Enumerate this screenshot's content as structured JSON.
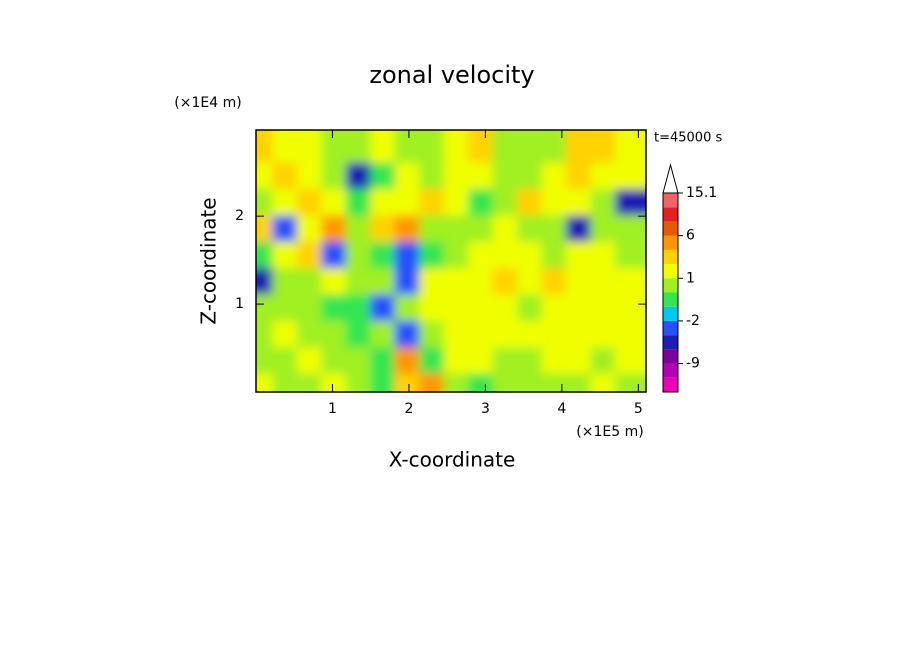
{
  "chart_data": {
    "type": "contour",
    "title": "zonal velocity",
    "x_unit": "(×1E5 m)",
    "y_unit": "(×1E4 m)",
    "time_label": "t=45000 s",
    "xlabel": "X-coordinate",
    "ylabel": "Z-coordinate",
    "xlim": [
      0,
      5.1
    ],
    "ylim": [
      0,
      2.98
    ],
    "xticks": [
      1,
      2,
      3,
      4,
      5
    ],
    "yticks": [
      1,
      2
    ],
    "x": [
      0.16,
      0.48,
      0.8,
      1.12,
      1.44,
      1.76,
      2.08,
      2.4,
      2.72,
      3.04,
      3.36,
      3.68,
      4.0,
      4.32,
      4.64,
      4.96
    ],
    "y": [
      0.15,
      0.45,
      0.75,
      1.05,
      1.35,
      1.65,
      1.95,
      2.25,
      2.55,
      2.85
    ],
    "z": [
      [
        1.5,
        0.5,
        0.5,
        1.5,
        0.5,
        -1,
        2,
        4,
        0.5,
        -1,
        0.5,
        0.5,
        0.5,
        0.5,
        1.5,
        0.5
      ],
      [
        0.5,
        0.5,
        1.5,
        0.5,
        0.5,
        -1,
        3,
        -1,
        1.5,
        1.5,
        0.5,
        0.5,
        1.5,
        1.5,
        0.5,
        1.5
      ],
      [
        0.5,
        1.5,
        0.5,
        0.5,
        -1,
        0.5,
        -3,
        0.5,
        1.5,
        1.5,
        1.5,
        1.5,
        1.5,
        1.5,
        1.5,
        1.5
      ],
      [
        0.5,
        0.5,
        0.5,
        -1,
        -1,
        -3,
        0.5,
        1.5,
        1.5,
        1.5,
        1.5,
        0.5,
        1.5,
        1.5,
        1.5,
        1.5
      ],
      [
        -5,
        0.5,
        0.5,
        1.5,
        0.5,
        0.5,
        -3,
        1.5,
        1.5,
        1.5,
        2.5,
        1.5,
        2.5,
        1.5,
        1.5,
        1.5
      ],
      [
        -1,
        1.5,
        2.5,
        -3,
        0.5,
        -1,
        -3,
        -1,
        0.5,
        1.5,
        1.5,
        1.5,
        0.5,
        1.5,
        1.5,
        0.5
      ],
      [
        2.5,
        -3,
        1.5,
        4,
        0.5,
        2.5,
        4,
        0.5,
        0.5,
        0.5,
        1.5,
        0.5,
        0.5,
        -5,
        0.5,
        0.5
      ],
      [
        0.5,
        1.5,
        2.5,
        1.5,
        -1,
        1.5,
        1.5,
        2.5,
        1.5,
        -1,
        0.5,
        2.5,
        1.5,
        1.5,
        0.5,
        -5
      ],
      [
        1.5,
        2.5,
        1.5,
        0.5,
        -5,
        -1,
        1.5,
        0.5,
        1.5,
        1.5,
        0.5,
        0.5,
        1.5,
        2.5,
        1.5,
        1.5
      ],
      [
        2.5,
        1.5,
        1.5,
        0.5,
        0.5,
        1.5,
        0.5,
        0.5,
        1.5,
        2.5,
        0.5,
        0.5,
        0.5,
        2.5,
        2.5,
        1.5
      ]
    ],
    "colorbar": {
      "levels": [
        -15,
        -12,
        -9,
        -6,
        -4,
        -2,
        -1,
        0,
        1,
        2,
        3,
        6,
        9,
        12,
        15.1
      ],
      "colors": [
        "#f000b4",
        "#b400b4",
        "#7d00a0",
        "#1e1eb4",
        "#2850ff",
        "#00c8f0",
        "#32e650",
        "#a0f020",
        "#f0ff00",
        "#ffd200",
        "#ff9600",
        "#e65a00",
        "#e62020",
        "#f06464",
        "#f8b4b4"
      ],
      "ticks": [
        -9,
        -2,
        1,
        6,
        15.1
      ]
    }
  }
}
